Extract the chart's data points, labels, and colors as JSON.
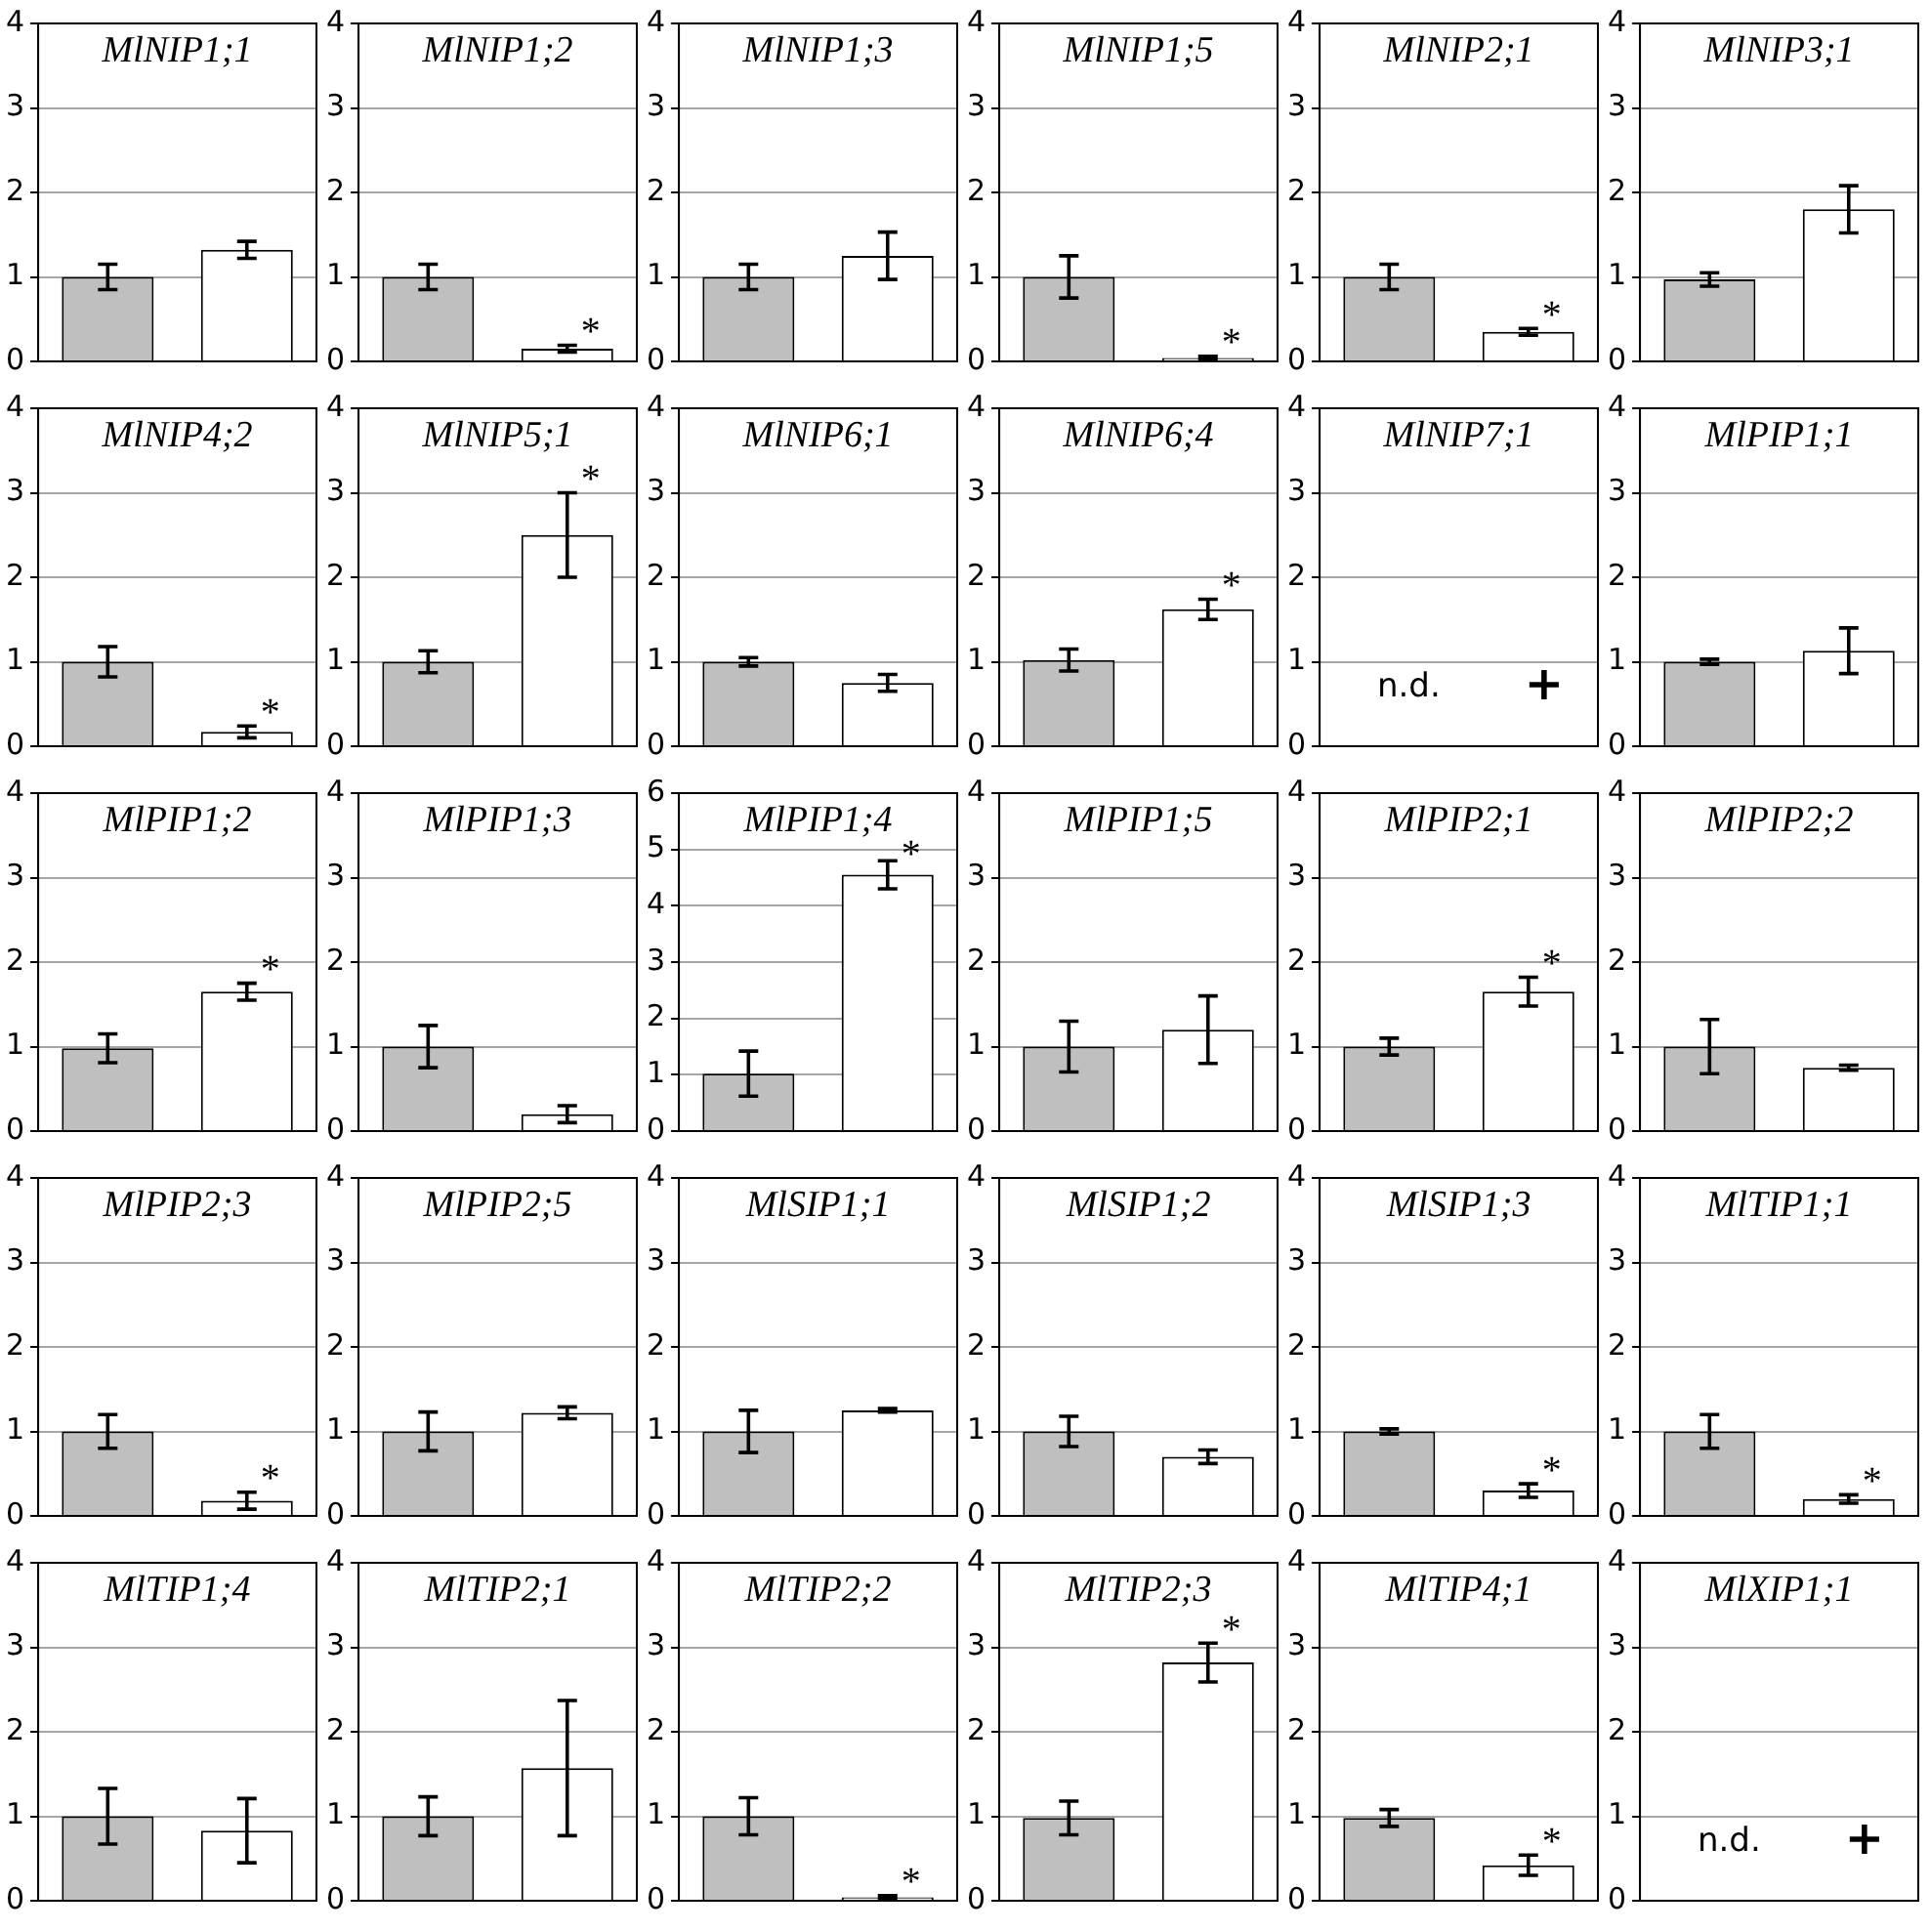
{
  "chart_data": [
    {
      "type": "bar",
      "title": "MlNIP1;1",
      "categories": [
        null,
        null
      ],
      "values": [
        1,
        1.32
      ],
      "errors": [
        0.15,
        0.1
      ],
      "colors": [
        "#bfbfbf",
        "#ffffff"
      ],
      "ylim": [
        0,
        4
      ],
      "yticks": [
        0,
        1,
        2,
        3,
        4
      ],
      "grid": "y",
      "legend": false,
      "tick_labels": "y"
    },
    {
      "type": "bar",
      "title": "MlNIP1;2",
      "categories": [
        null,
        null
      ],
      "values": [
        1,
        0.15
      ],
      "errors": [
        0.15,
        0.04
      ],
      "colors": [
        "#bfbfbf",
        "#ffffff"
      ],
      "ylim": [
        0,
        4
      ],
      "yticks": [
        0,
        1,
        2,
        3,
        4
      ],
      "grid": "y",
      "legend": false,
      "tick_labels": "y",
      "annotations": [
        "*"
      ]
    },
    {
      "type": "bar",
      "title": "MlNIP1;3",
      "categories": [
        null,
        null
      ],
      "values": [
        1,
        1.25
      ],
      "errors": [
        0.15,
        0.28
      ],
      "colors": [
        "#bfbfbf",
        "#ffffff"
      ],
      "ylim": [
        0,
        4
      ],
      "yticks": [
        0,
        1,
        2,
        3,
        4
      ],
      "grid": "y",
      "legend": false,
      "tick_labels": "y"
    },
    {
      "type": "bar",
      "title": "MlNIP1;5",
      "categories": [
        null,
        null
      ],
      "values": [
        1,
        0.04
      ],
      "errors": [
        0.25,
        0.02
      ],
      "colors": [
        "#bfbfbf",
        "#ffffff"
      ],
      "ylim": [
        0,
        4
      ],
      "yticks": [
        0,
        1,
        2,
        3,
        4
      ],
      "grid": "y",
      "legend": false,
      "tick_labels": "y",
      "annotations": [
        "*"
      ]
    },
    {
      "type": "bar",
      "title": "MlNIP2;1",
      "categories": [
        null,
        null
      ],
      "values": [
        1,
        0.35
      ],
      "errors": [
        0.15,
        0.04
      ],
      "colors": [
        "#bfbfbf",
        "#ffffff"
      ],
      "ylim": [
        0,
        4
      ],
      "yticks": [
        0,
        1,
        2,
        3,
        4
      ],
      "grid": "y",
      "legend": false,
      "tick_labels": "y",
      "annotations": [
        "*"
      ]
    },
    {
      "type": "bar",
      "title": "MlNIP3;1",
      "categories": [
        null,
        null
      ],
      "values": [
        0.97,
        1.8
      ],
      "errors": [
        0.08,
        0.28
      ],
      "colors": [
        "#bfbfbf",
        "#ffffff"
      ],
      "ylim": [
        0,
        4
      ],
      "yticks": [
        0,
        1,
        2,
        3,
        4
      ],
      "grid": "y",
      "legend": false,
      "tick_labels": "y"
    },
    {
      "type": "bar",
      "title": "MlNIP4;2",
      "categories": [
        null,
        null
      ],
      "values": [
        1,
        0.17
      ],
      "errors": [
        0.18,
        0.07
      ],
      "colors": [
        "#bfbfbf",
        "#ffffff"
      ],
      "ylim": [
        0,
        4
      ],
      "yticks": [
        0,
        1,
        2,
        3,
        4
      ],
      "grid": "y",
      "legend": false,
      "tick_labels": "y",
      "annotations": [
        "*"
      ]
    },
    {
      "type": "bar",
      "title": "MlNIP5;1",
      "categories": [
        null,
        null
      ],
      "values": [
        1,
        2.5
      ],
      "errors": [
        0.13,
        0.5
      ],
      "colors": [
        "#bfbfbf",
        "#ffffff"
      ],
      "ylim": [
        0,
        4
      ],
      "yticks": [
        0,
        1,
        2,
        3,
        4
      ],
      "grid": "y",
      "legend": false,
      "tick_labels": "y",
      "annotations": [
        "*"
      ]
    },
    {
      "type": "bar",
      "title": "MlNIP6;1",
      "categories": [
        null,
        null
      ],
      "values": [
        1,
        0.75
      ],
      "errors": [
        0.05,
        0.1
      ],
      "colors": [
        "#bfbfbf",
        "#ffffff"
      ],
      "ylim": [
        0,
        4
      ],
      "yticks": [
        0,
        1,
        2,
        3,
        4
      ],
      "grid": "y",
      "legend": false,
      "tick_labels": "y"
    },
    {
      "type": "bar",
      "title": "MlNIP6;4",
      "categories": [
        null,
        null
      ],
      "values": [
        1.02,
        1.62
      ],
      "errors": [
        0.13,
        0.12
      ],
      "colors": [
        "#bfbfbf",
        "#ffffff"
      ],
      "ylim": [
        0,
        4
      ],
      "yticks": [
        0,
        1,
        2,
        3,
        4
      ],
      "grid": "y",
      "legend": false,
      "tick_labels": "y",
      "annotations": [
        "*"
      ]
    },
    {
      "type": "bar",
      "title": "MlNIP7;1",
      "categories": [
        null,
        null
      ],
      "values": [
        null,
        null
      ],
      "colors": [
        "#bfbfbf",
        "#ffffff"
      ],
      "ylim": [
        0,
        4
      ],
      "yticks": [
        0,
        1,
        2,
        3,
        4
      ],
      "grid": "y",
      "legend": false,
      "tick_labels": "y",
      "annotations": [
        "n.d.",
        "+"
      ]
    },
    {
      "type": "bar",
      "title": "MlPIP1;1",
      "categories": [
        null,
        null
      ],
      "values": [
        1,
        1.13
      ],
      "errors": [
        0.03,
        0.27
      ],
      "colors": [
        "#bfbfbf",
        "#ffffff"
      ],
      "ylim": [
        0,
        4
      ],
      "yticks": [
        0,
        1,
        2,
        3,
        4
      ],
      "grid": "y",
      "legend": false,
      "tick_labels": "y"
    },
    {
      "type": "bar",
      "title": "MlPIP1;2",
      "categories": [
        null,
        null
      ],
      "values": [
        0.98,
        1.65
      ],
      "errors": [
        0.17,
        0.1
      ],
      "colors": [
        "#bfbfbf",
        "#ffffff"
      ],
      "ylim": [
        0,
        4
      ],
      "yticks": [
        0,
        1,
        2,
        3,
        4
      ],
      "grid": "y",
      "legend": false,
      "tick_labels": "y",
      "annotations": [
        "*"
      ]
    },
    {
      "type": "bar",
      "title": "MlPIP1;3",
      "categories": [
        null,
        null
      ],
      "values": [
        1,
        0.2
      ],
      "errors": [
        0.25,
        0.1
      ],
      "colors": [
        "#bfbfbf",
        "#ffffff"
      ],
      "ylim": [
        0,
        4
      ],
      "yticks": [
        0,
        1,
        2,
        3,
        4
      ],
      "grid": "y",
      "legend": false,
      "tick_labels": "y"
    },
    {
      "type": "bar",
      "title": "MlPIP1;4",
      "categories": [
        null,
        null
      ],
      "values": [
        1.02,
        4.55
      ],
      "errors": [
        0.4,
        0.25
      ],
      "colors": [
        "#bfbfbf",
        "#ffffff"
      ],
      "ylim": [
        0,
        6
      ],
      "yticks": [
        0,
        1,
        2,
        3,
        4,
        5,
        6
      ],
      "grid": "y",
      "legend": false,
      "tick_labels": "y",
      "annotations": [
        "*"
      ]
    },
    {
      "type": "bar",
      "title": "MlPIP1;5",
      "categories": [
        null,
        null
      ],
      "values": [
        1,
        1.2
      ],
      "errors": [
        0.3,
        0.4
      ],
      "colors": [
        "#bfbfbf",
        "#ffffff"
      ],
      "ylim": [
        0,
        4
      ],
      "yticks": [
        0,
        1,
        2,
        3,
        4
      ],
      "grid": "y",
      "legend": false,
      "tick_labels": "y"
    },
    {
      "type": "bar",
      "title": "MlPIP2;1",
      "categories": [
        null,
        null
      ],
      "values": [
        1,
        1.65
      ],
      "errors": [
        0.1,
        0.17
      ],
      "colors": [
        "#bfbfbf",
        "#ffffff"
      ],
      "ylim": [
        0,
        4
      ],
      "yticks": [
        0,
        1,
        2,
        3,
        4
      ],
      "grid": "y",
      "legend": false,
      "tick_labels": "y",
      "annotations": [
        "*"
      ]
    },
    {
      "type": "bar",
      "title": "MlPIP2;2",
      "categories": [
        null,
        null
      ],
      "values": [
        1,
        0.75
      ],
      "errors": [
        0.32,
        0.03
      ],
      "colors": [
        "#bfbfbf",
        "#ffffff"
      ],
      "ylim": [
        0,
        4
      ],
      "yticks": [
        0,
        1,
        2,
        3,
        4
      ],
      "grid": "y",
      "legend": false,
      "tick_labels": "y"
    },
    {
      "type": "bar",
      "title": "MlPIP2;3",
      "categories": [
        null,
        null
      ],
      "values": [
        1,
        0.18
      ],
      "errors": [
        0.2,
        0.1
      ],
      "colors": [
        "#bfbfbf",
        "#ffffff"
      ],
      "ylim": [
        0,
        4
      ],
      "yticks": [
        0,
        1,
        2,
        3,
        4
      ],
      "grid": "y",
      "legend": false,
      "tick_labels": "y",
      "annotations": [
        "*"
      ]
    },
    {
      "type": "bar",
      "title": "MlPIP2;5",
      "categories": [
        null,
        null
      ],
      "values": [
        1,
        1.22
      ],
      "errors": [
        0.23,
        0.07
      ],
      "colors": [
        "#bfbfbf",
        "#ffffff"
      ],
      "ylim": [
        0,
        4
      ],
      "yticks": [
        0,
        1,
        2,
        3,
        4
      ],
      "grid": "y",
      "legend": false,
      "tick_labels": "y"
    },
    {
      "type": "bar",
      "title": "MlSIP1;1",
      "categories": [
        null,
        null
      ],
      "values": [
        1,
        1.25
      ],
      "errors": [
        0.25,
        0.02
      ],
      "colors": [
        "#bfbfbf",
        "#ffffff"
      ],
      "ylim": [
        0,
        4
      ],
      "yticks": [
        0,
        1,
        2,
        3,
        4
      ],
      "grid": "y",
      "legend": false,
      "tick_labels": "y"
    },
    {
      "type": "bar",
      "title": "MlSIP1;2",
      "categories": [
        null,
        null
      ],
      "values": [
        1,
        0.7
      ],
      "errors": [
        0.18,
        0.08
      ],
      "colors": [
        "#bfbfbf",
        "#ffffff"
      ],
      "ylim": [
        0,
        4
      ],
      "yticks": [
        0,
        1,
        2,
        3,
        4
      ],
      "grid": "y",
      "legend": false,
      "tick_labels": "y"
    },
    {
      "type": "bar",
      "title": "MlSIP1;3",
      "categories": [
        null,
        null
      ],
      "values": [
        1,
        0.3
      ],
      "errors": [
        0.03,
        0.08
      ],
      "colors": [
        "#bfbfbf",
        "#ffffff"
      ],
      "ylim": [
        0,
        4
      ],
      "yticks": [
        0,
        1,
        2,
        3,
        4
      ],
      "grid": "y",
      "legend": false,
      "tick_labels": "y",
      "annotations": [
        "*"
      ]
    },
    {
      "type": "bar",
      "title": "MlTIP1;1",
      "categories": [
        null,
        null
      ],
      "values": [
        1,
        0.2
      ],
      "errors": [
        0.2,
        0.05
      ],
      "colors": [
        "#bfbfbf",
        "#ffffff"
      ],
      "ylim": [
        0,
        4
      ],
      "yticks": [
        0,
        1,
        2,
        3,
        4
      ],
      "grid": "y",
      "legend": false,
      "tick_labels": "y",
      "annotations": [
        "*"
      ]
    },
    {
      "type": "bar",
      "title": "MlTIP1;4",
      "categories": [
        null,
        null
      ],
      "values": [
        1,
        0.83
      ],
      "errors": [
        0.33,
        0.38
      ],
      "colors": [
        "#bfbfbf",
        "#ffffff"
      ],
      "ylim": [
        0,
        4
      ],
      "yticks": [
        0,
        1,
        2,
        3,
        4
      ],
      "grid": "y",
      "legend": false,
      "tick_labels": "y"
    },
    {
      "type": "bar",
      "title": "MlTIP2;1",
      "categories": [
        null,
        null
      ],
      "values": [
        1,
        1.57
      ],
      "errors": [
        0.23,
        0.8
      ],
      "colors": [
        "#bfbfbf",
        "#ffffff"
      ],
      "ylim": [
        0,
        4
      ],
      "yticks": [
        0,
        1,
        2,
        3,
        4
      ],
      "grid": "y",
      "legend": false,
      "tick_labels": "y"
    },
    {
      "type": "bar",
      "title": "MlTIP2;2",
      "categories": [
        null,
        null
      ],
      "values": [
        1,
        0.04
      ],
      "errors": [
        0.22,
        0.02
      ],
      "colors": [
        "#bfbfbf",
        "#ffffff"
      ],
      "ylim": [
        0,
        4
      ],
      "yticks": [
        0,
        1,
        2,
        3,
        4
      ],
      "grid": "y",
      "legend": false,
      "tick_labels": "y",
      "annotations": [
        "*"
      ]
    },
    {
      "type": "bar",
      "title": "MlTIP2;3",
      "categories": [
        null,
        null
      ],
      "values": [
        0.98,
        2.82
      ],
      "errors": [
        0.2,
        0.23
      ],
      "colors": [
        "#bfbfbf",
        "#ffffff"
      ],
      "ylim": [
        0,
        4
      ],
      "yticks": [
        0,
        1,
        2,
        3,
        4
      ],
      "grid": "y",
      "legend": false,
      "tick_labels": "y",
      "annotations": [
        "*"
      ]
    },
    {
      "type": "bar",
      "title": "MlTIP4;1",
      "categories": [
        null,
        null
      ],
      "values": [
        0.98,
        0.42
      ],
      "errors": [
        0.1,
        0.12
      ],
      "colors": [
        "#bfbfbf",
        "#ffffff"
      ],
      "ylim": [
        0,
        4
      ],
      "yticks": [
        0,
        1,
        2,
        3,
        4
      ],
      "grid": "y",
      "legend": false,
      "tick_labels": "y",
      "annotations": [
        "*"
      ]
    },
    {
      "type": "bar",
      "title": "MlXIP1;1",
      "categories": [
        null,
        null
      ],
      "values": [
        null,
        null
      ],
      "colors": [
        "#bfbfbf",
        "#ffffff"
      ],
      "ylim": [
        0,
        4
      ],
      "yticks": [
        0,
        1,
        2,
        3,
        4
      ],
      "grid": "y",
      "legend": false,
      "tick_labels": "y",
      "annotations": [
        "n.d.",
        "+"
      ]
    }
  ]
}
